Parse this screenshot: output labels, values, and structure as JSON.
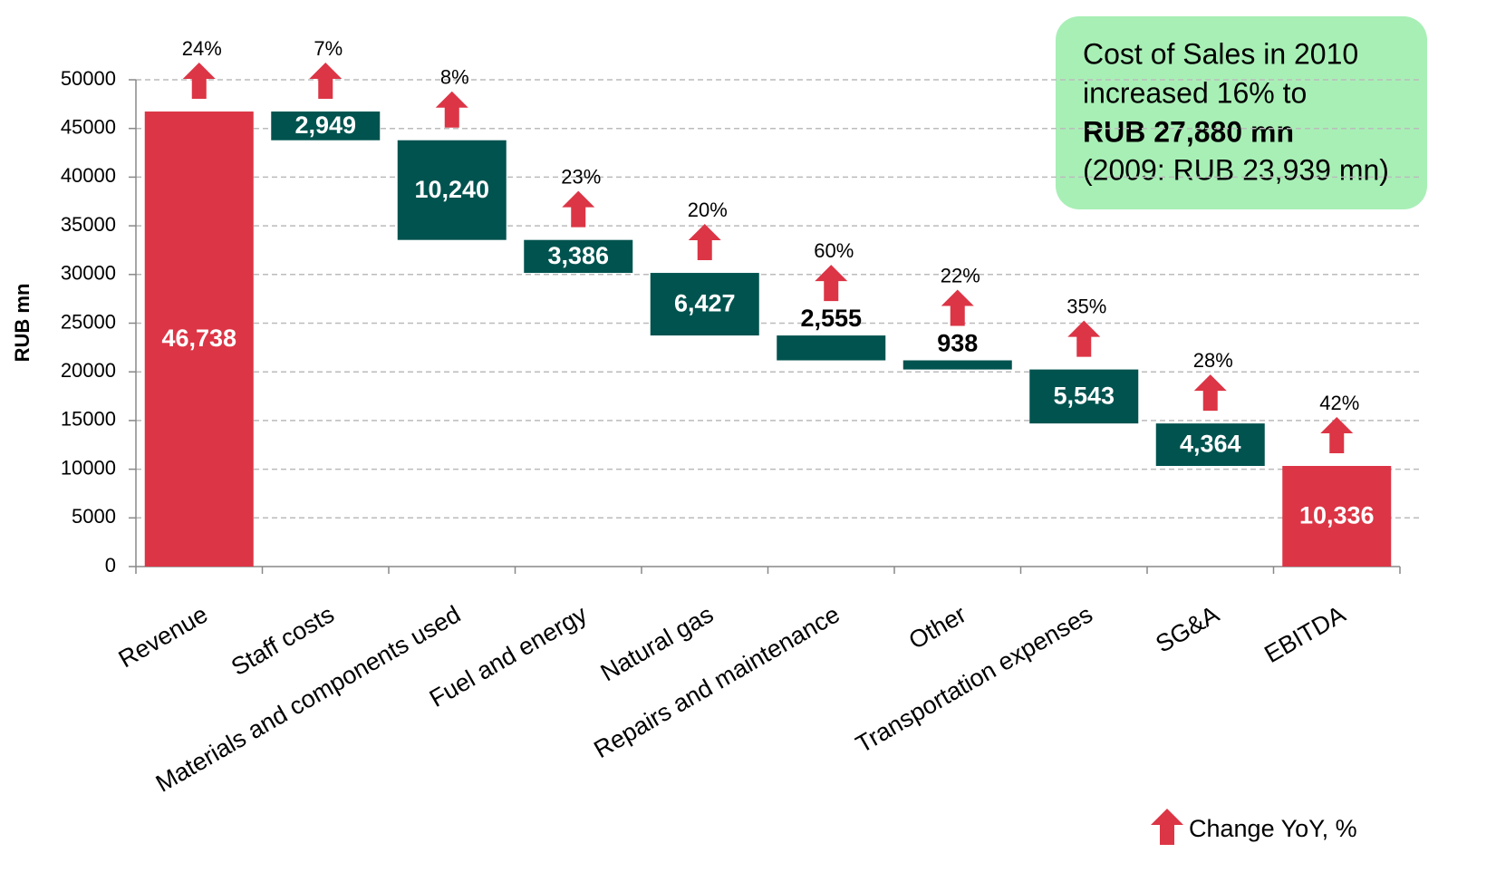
{
  "chart_data": {
    "type": "waterfall",
    "y_label": "RUB mn",
    "categories": [
      "Revenue",
      "Staff costs",
      "Materials and components used",
      "Fuel and energy",
      "Natural gas",
      "Repairs and maintenance",
      "Other",
      "Transportation expenses",
      "SG&A",
      "EBITDA"
    ],
    "measure": [
      "total",
      "decrease",
      "decrease",
      "decrease",
      "decrease",
      "decrease",
      "decrease",
      "decrease",
      "decrease",
      "total"
    ],
    "values": [
      46738,
      2949,
      10240,
      3386,
      6427,
      2555,
      938,
      5543,
      4364,
      10336
    ],
    "value_labels": [
      "46,738",
      "2,949",
      "10,240",
      "3,386",
      "6,427",
      "2,555",
      "938",
      "5,543",
      "4,364",
      "10,336"
    ],
    "changes": [
      24,
      7,
      8,
      23,
      20,
      60,
      22,
      35,
      28,
      42
    ],
    "change_labels": [
      "24%",
      "7%",
      "8%",
      "23%",
      "20%",
      "60%",
      "22%",
      "35%",
      "28%",
      "42%"
    ],
    "change_legend": "Change YoY, %",
    "colors": {
      "total": "#dc3545",
      "decrease": "#00534f",
      "change": "#dc3545"
    },
    "ylim": [
      0,
      50000
    ],
    "yticks": [
      0,
      5000,
      10000,
      15000,
      20000,
      25000,
      30000,
      35000,
      40000,
      45000,
      50000
    ],
    "grid": true,
    "annotation": [
      "Cost of Sales in 2010",
      "increased 16% to",
      "RUB 27,880 mn",
      "(2009: RUB 23,939 mn)"
    ]
  }
}
